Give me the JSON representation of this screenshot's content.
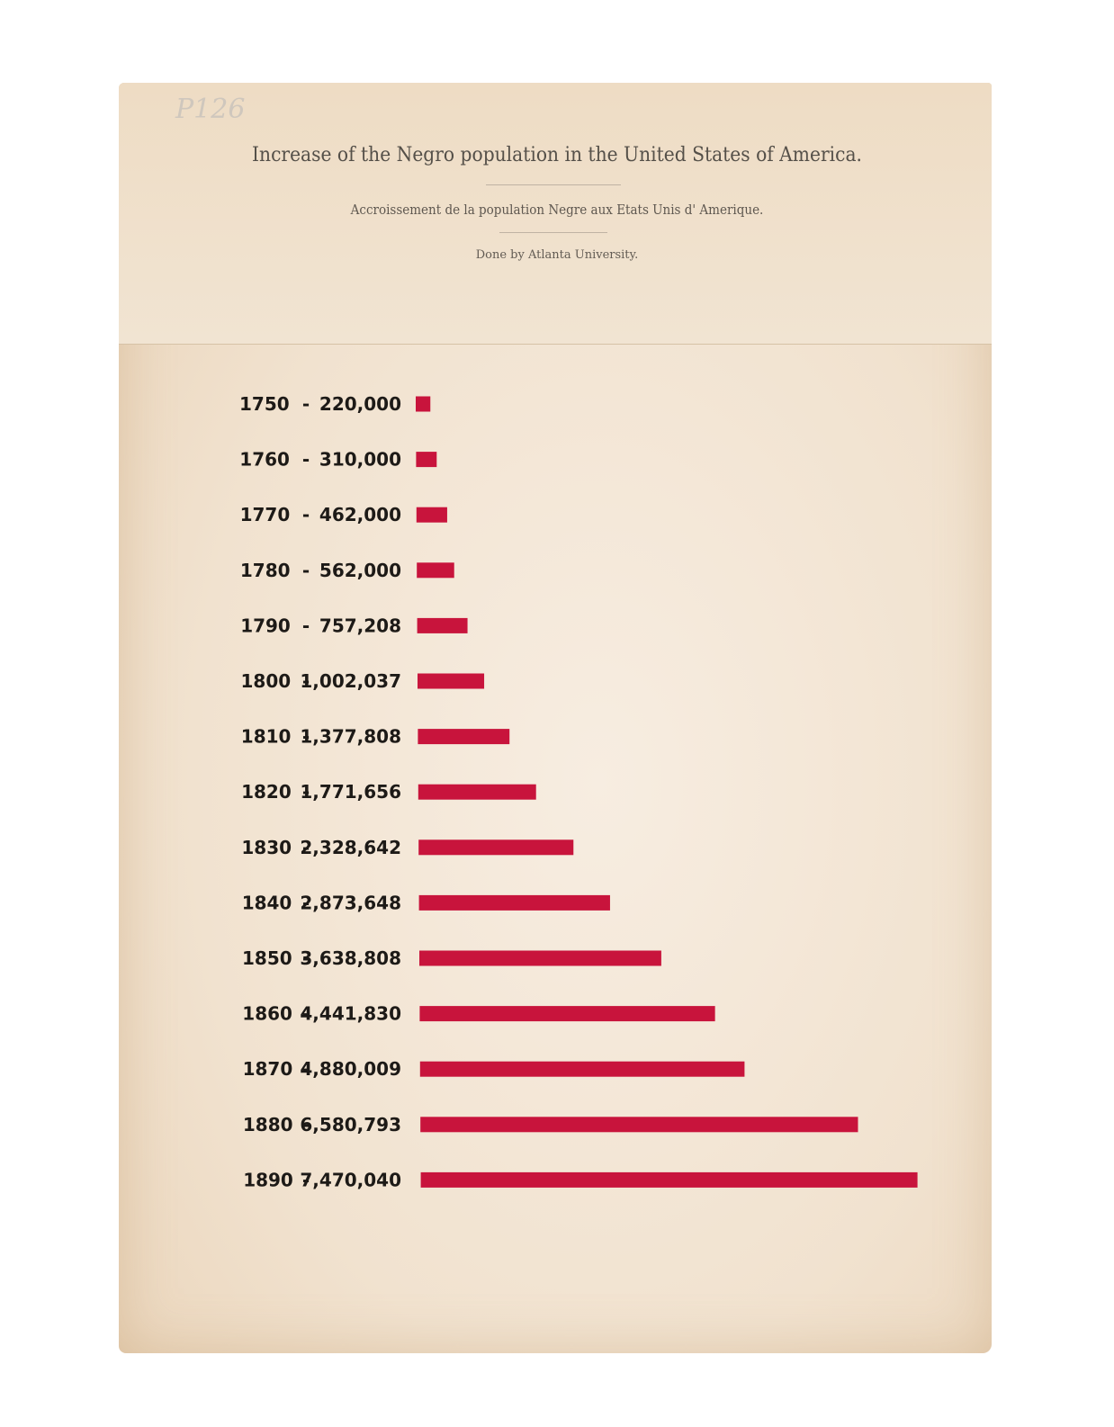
{
  "page": {
    "title": "Increase of the Negro population in the United States of America.",
    "subtitle": "Accroissement de la population Negre aux Etats Unis d' Amerique.",
    "credit": "Done by Atlanta University.",
    "handwritten_mark": "P126"
  },
  "colors": {
    "bar": "#c8143c",
    "paper": "#f3e6d6",
    "text": "#1d1a17"
  },
  "chart_data": {
    "type": "bar",
    "orientation": "horizontal",
    "title": "Increase of the Negro population in the United States of America.",
    "xlabel": "",
    "ylabel": "",
    "grid": false,
    "xlim": [
      0,
      7470040
    ],
    "categories": [
      "1750",
      "1760",
      "1770",
      "1780",
      "1790",
      "1800",
      "1810",
      "1820",
      "1830",
      "1840",
      "1850",
      "1860",
      "1870",
      "1880",
      "1890"
    ],
    "value_labels": [
      "220,000",
      "310,000",
      "462,000",
      "562,000",
      "757,208",
      "1,002,037",
      "1,377,808",
      "1,771,656",
      "2,328,642",
      "2,873,648",
      "3,638,808",
      "4,441,830",
      "4,880,009",
      "6,580,793",
      "7,470,040"
    ],
    "values": [
      220000,
      310000,
      462000,
      562000,
      757208,
      1002037,
      1377808,
      1771656,
      2328642,
      2873648,
      3638808,
      4441830,
      4880009,
      6580793,
      7470040
    ]
  }
}
